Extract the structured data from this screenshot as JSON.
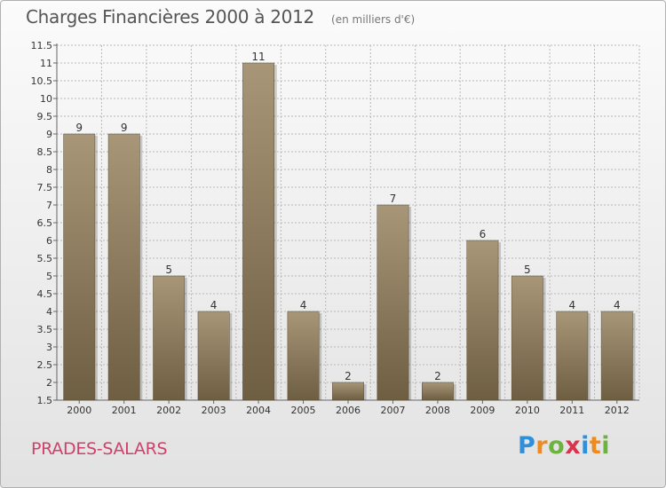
{
  "header": {
    "title": "Charges Financières 2000 à 2012",
    "subtitle": "(en milliers d'€)"
  },
  "footer": {
    "commune": "PRADES-SALARS",
    "brand": {
      "text": "Proxiti",
      "letters": [
        "P",
        "r",
        "o",
        "x",
        "i",
        "t",
        "i"
      ],
      "colors": [
        "#2f8fd8",
        "#f08a1e",
        "#6db33f",
        "#d8344c",
        "#2f8fd8",
        "#f08a1e",
        "#6db33f"
      ]
    }
  },
  "colors": {
    "bar_dark": "#6e5e42",
    "bar_light": "#a89678",
    "grid": "#b8b8b8",
    "axis": "#666666"
  },
  "chart_data": {
    "type": "bar",
    "title": "Charges Financières 2000 à 2012",
    "subtitle": "(en milliers d'€)",
    "xlabel": "",
    "ylabel": "",
    "categories": [
      "2000",
      "2001",
      "2002",
      "2003",
      "2004",
      "2005",
      "2006",
      "2007",
      "2008",
      "2009",
      "2010",
      "2011",
      "2012"
    ],
    "values": [
      9,
      9,
      5,
      4,
      11,
      4,
      2,
      7,
      2,
      6,
      5,
      4,
      4
    ],
    "data_labels": [
      "9",
      "9",
      "5",
      "4",
      "11",
      "4",
      "2",
      "7",
      "2",
      "6",
      "5",
      "4",
      "4"
    ],
    "ylim": [
      1.5,
      11.5
    ],
    "yticks": [
      1.5,
      2,
      2.5,
      3,
      3.5,
      4,
      4.5,
      5,
      5.5,
      6,
      6.5,
      7,
      7.5,
      8,
      8.5,
      9,
      9.5,
      10,
      10.5,
      11,
      11.5
    ],
    "ytick_labels": [
      "1.5",
      "2",
      "2.5",
      "3",
      "3.5",
      "4",
      "4.5",
      "5",
      "5.5",
      "6",
      "6.5",
      "7",
      "7.5",
      "8",
      "8.5",
      "9",
      "9.5",
      "10",
      "10.5",
      "11",
      "11.5"
    ],
    "grid": true,
    "legend": "none"
  }
}
